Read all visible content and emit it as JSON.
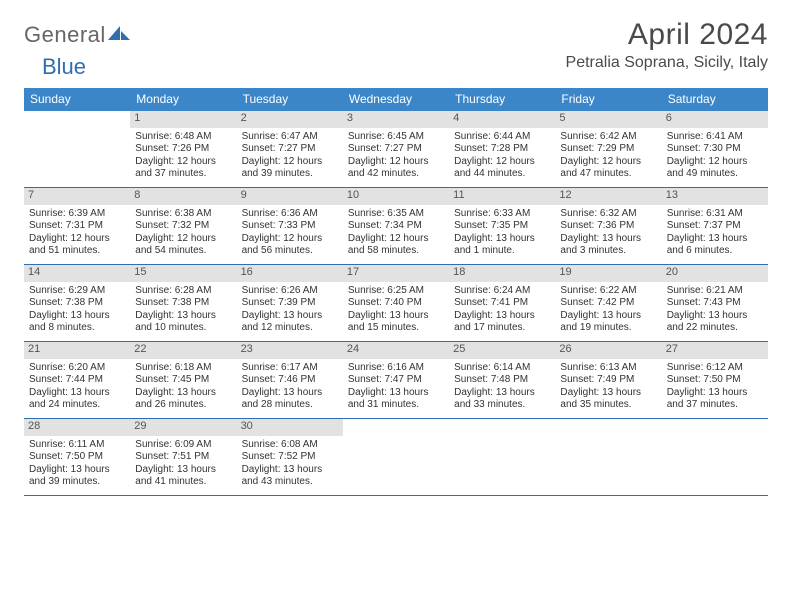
{
  "brand": {
    "part1": "General",
    "part2": "Blue"
  },
  "title": "April 2024",
  "location": "Petralia Soprana, Sicily, Italy",
  "colors": {
    "header_bg": "#3b86c9",
    "header_text": "#ffffff",
    "daynum_bg": "#e2e2e2",
    "rule": "#2f6fb0",
    "text": "#333333",
    "title_text": "#4a4a4a"
  },
  "fonts": {
    "title_size_pt": 22,
    "location_size_pt": 12,
    "dayhead_size_pt": 9,
    "cell_size_pt": 7.5
  },
  "layout": {
    "columns": 7,
    "rows": 5,
    "first_weekday": "Sunday",
    "start_offset": 1
  },
  "day_headers": [
    "Sunday",
    "Monday",
    "Tuesday",
    "Wednesday",
    "Thursday",
    "Friday",
    "Saturday"
  ],
  "days": [
    {
      "n": "1",
      "sunrise": "Sunrise: 6:48 AM",
      "sunset": "Sunset: 7:26 PM",
      "daylight": "Daylight: 12 hours and 37 minutes."
    },
    {
      "n": "2",
      "sunrise": "Sunrise: 6:47 AM",
      "sunset": "Sunset: 7:27 PM",
      "daylight": "Daylight: 12 hours and 39 minutes."
    },
    {
      "n": "3",
      "sunrise": "Sunrise: 6:45 AM",
      "sunset": "Sunset: 7:27 PM",
      "daylight": "Daylight: 12 hours and 42 minutes."
    },
    {
      "n": "4",
      "sunrise": "Sunrise: 6:44 AM",
      "sunset": "Sunset: 7:28 PM",
      "daylight": "Daylight: 12 hours and 44 minutes."
    },
    {
      "n": "5",
      "sunrise": "Sunrise: 6:42 AM",
      "sunset": "Sunset: 7:29 PM",
      "daylight": "Daylight: 12 hours and 47 minutes."
    },
    {
      "n": "6",
      "sunrise": "Sunrise: 6:41 AM",
      "sunset": "Sunset: 7:30 PM",
      "daylight": "Daylight: 12 hours and 49 minutes."
    },
    {
      "n": "7",
      "sunrise": "Sunrise: 6:39 AM",
      "sunset": "Sunset: 7:31 PM",
      "daylight": "Daylight: 12 hours and 51 minutes."
    },
    {
      "n": "8",
      "sunrise": "Sunrise: 6:38 AM",
      "sunset": "Sunset: 7:32 PM",
      "daylight": "Daylight: 12 hours and 54 minutes."
    },
    {
      "n": "9",
      "sunrise": "Sunrise: 6:36 AM",
      "sunset": "Sunset: 7:33 PM",
      "daylight": "Daylight: 12 hours and 56 minutes."
    },
    {
      "n": "10",
      "sunrise": "Sunrise: 6:35 AM",
      "sunset": "Sunset: 7:34 PM",
      "daylight": "Daylight: 12 hours and 58 minutes."
    },
    {
      "n": "11",
      "sunrise": "Sunrise: 6:33 AM",
      "sunset": "Sunset: 7:35 PM",
      "daylight": "Daylight: 13 hours and 1 minute."
    },
    {
      "n": "12",
      "sunrise": "Sunrise: 6:32 AM",
      "sunset": "Sunset: 7:36 PM",
      "daylight": "Daylight: 13 hours and 3 minutes."
    },
    {
      "n": "13",
      "sunrise": "Sunrise: 6:31 AM",
      "sunset": "Sunset: 7:37 PM",
      "daylight": "Daylight: 13 hours and 6 minutes."
    },
    {
      "n": "14",
      "sunrise": "Sunrise: 6:29 AM",
      "sunset": "Sunset: 7:38 PM",
      "daylight": "Daylight: 13 hours and 8 minutes."
    },
    {
      "n": "15",
      "sunrise": "Sunrise: 6:28 AM",
      "sunset": "Sunset: 7:38 PM",
      "daylight": "Daylight: 13 hours and 10 minutes."
    },
    {
      "n": "16",
      "sunrise": "Sunrise: 6:26 AM",
      "sunset": "Sunset: 7:39 PM",
      "daylight": "Daylight: 13 hours and 12 minutes."
    },
    {
      "n": "17",
      "sunrise": "Sunrise: 6:25 AM",
      "sunset": "Sunset: 7:40 PM",
      "daylight": "Daylight: 13 hours and 15 minutes."
    },
    {
      "n": "18",
      "sunrise": "Sunrise: 6:24 AM",
      "sunset": "Sunset: 7:41 PM",
      "daylight": "Daylight: 13 hours and 17 minutes."
    },
    {
      "n": "19",
      "sunrise": "Sunrise: 6:22 AM",
      "sunset": "Sunset: 7:42 PM",
      "daylight": "Daylight: 13 hours and 19 minutes."
    },
    {
      "n": "20",
      "sunrise": "Sunrise: 6:21 AM",
      "sunset": "Sunset: 7:43 PM",
      "daylight": "Daylight: 13 hours and 22 minutes."
    },
    {
      "n": "21",
      "sunrise": "Sunrise: 6:20 AM",
      "sunset": "Sunset: 7:44 PM",
      "daylight": "Daylight: 13 hours and 24 minutes."
    },
    {
      "n": "22",
      "sunrise": "Sunrise: 6:18 AM",
      "sunset": "Sunset: 7:45 PM",
      "daylight": "Daylight: 13 hours and 26 minutes."
    },
    {
      "n": "23",
      "sunrise": "Sunrise: 6:17 AM",
      "sunset": "Sunset: 7:46 PM",
      "daylight": "Daylight: 13 hours and 28 minutes."
    },
    {
      "n": "24",
      "sunrise": "Sunrise: 6:16 AM",
      "sunset": "Sunset: 7:47 PM",
      "daylight": "Daylight: 13 hours and 31 minutes."
    },
    {
      "n": "25",
      "sunrise": "Sunrise: 6:14 AM",
      "sunset": "Sunset: 7:48 PM",
      "daylight": "Daylight: 13 hours and 33 minutes."
    },
    {
      "n": "26",
      "sunrise": "Sunrise: 6:13 AM",
      "sunset": "Sunset: 7:49 PM",
      "daylight": "Daylight: 13 hours and 35 minutes."
    },
    {
      "n": "27",
      "sunrise": "Sunrise: 6:12 AM",
      "sunset": "Sunset: 7:50 PM",
      "daylight": "Daylight: 13 hours and 37 minutes."
    },
    {
      "n": "28",
      "sunrise": "Sunrise: 6:11 AM",
      "sunset": "Sunset: 7:50 PM",
      "daylight": "Daylight: 13 hours and 39 minutes."
    },
    {
      "n": "29",
      "sunrise": "Sunrise: 6:09 AM",
      "sunset": "Sunset: 7:51 PM",
      "daylight": "Daylight: 13 hours and 41 minutes."
    },
    {
      "n": "30",
      "sunrise": "Sunrise: 6:08 AM",
      "sunset": "Sunset: 7:52 PM",
      "daylight": "Daylight: 13 hours and 43 minutes."
    }
  ]
}
